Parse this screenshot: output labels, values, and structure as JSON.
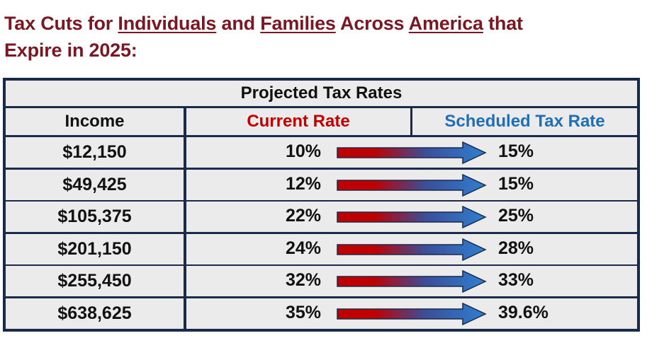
{
  "title": {
    "part1": "Tax Cuts for ",
    "individuals": "Individuals",
    "part2": " and ",
    "families": "Families",
    "part3": " Across ",
    "america": "America",
    "part4": " that",
    "line2": "Expire in 2025:"
  },
  "table": {
    "caption": "Projected Tax Rates",
    "headers": {
      "income": "Income",
      "current": "Current Rate",
      "scheduled": "Scheduled Tax Rate"
    },
    "rows": [
      {
        "income": "$12,150",
        "current": "10%",
        "scheduled": "15%"
      },
      {
        "income": "$49,425",
        "current": "12%",
        "scheduled": "15%"
      },
      {
        "income": "$105,375",
        "current": "22%",
        "scheduled": "25%"
      },
      {
        "income": "$201,150",
        "current": "24%",
        "scheduled": "28%"
      },
      {
        "income": "$255,450",
        "current": "32%",
        "scheduled": "33%"
      },
      {
        "income": "$638,625",
        "current": "35%",
        "scheduled": "39.6%"
      }
    ]
  },
  "colors": {
    "title": "#7a1722",
    "current_header": "#c00000",
    "scheduled_header": "#1e6fb8",
    "border": "#1a2a4a"
  }
}
